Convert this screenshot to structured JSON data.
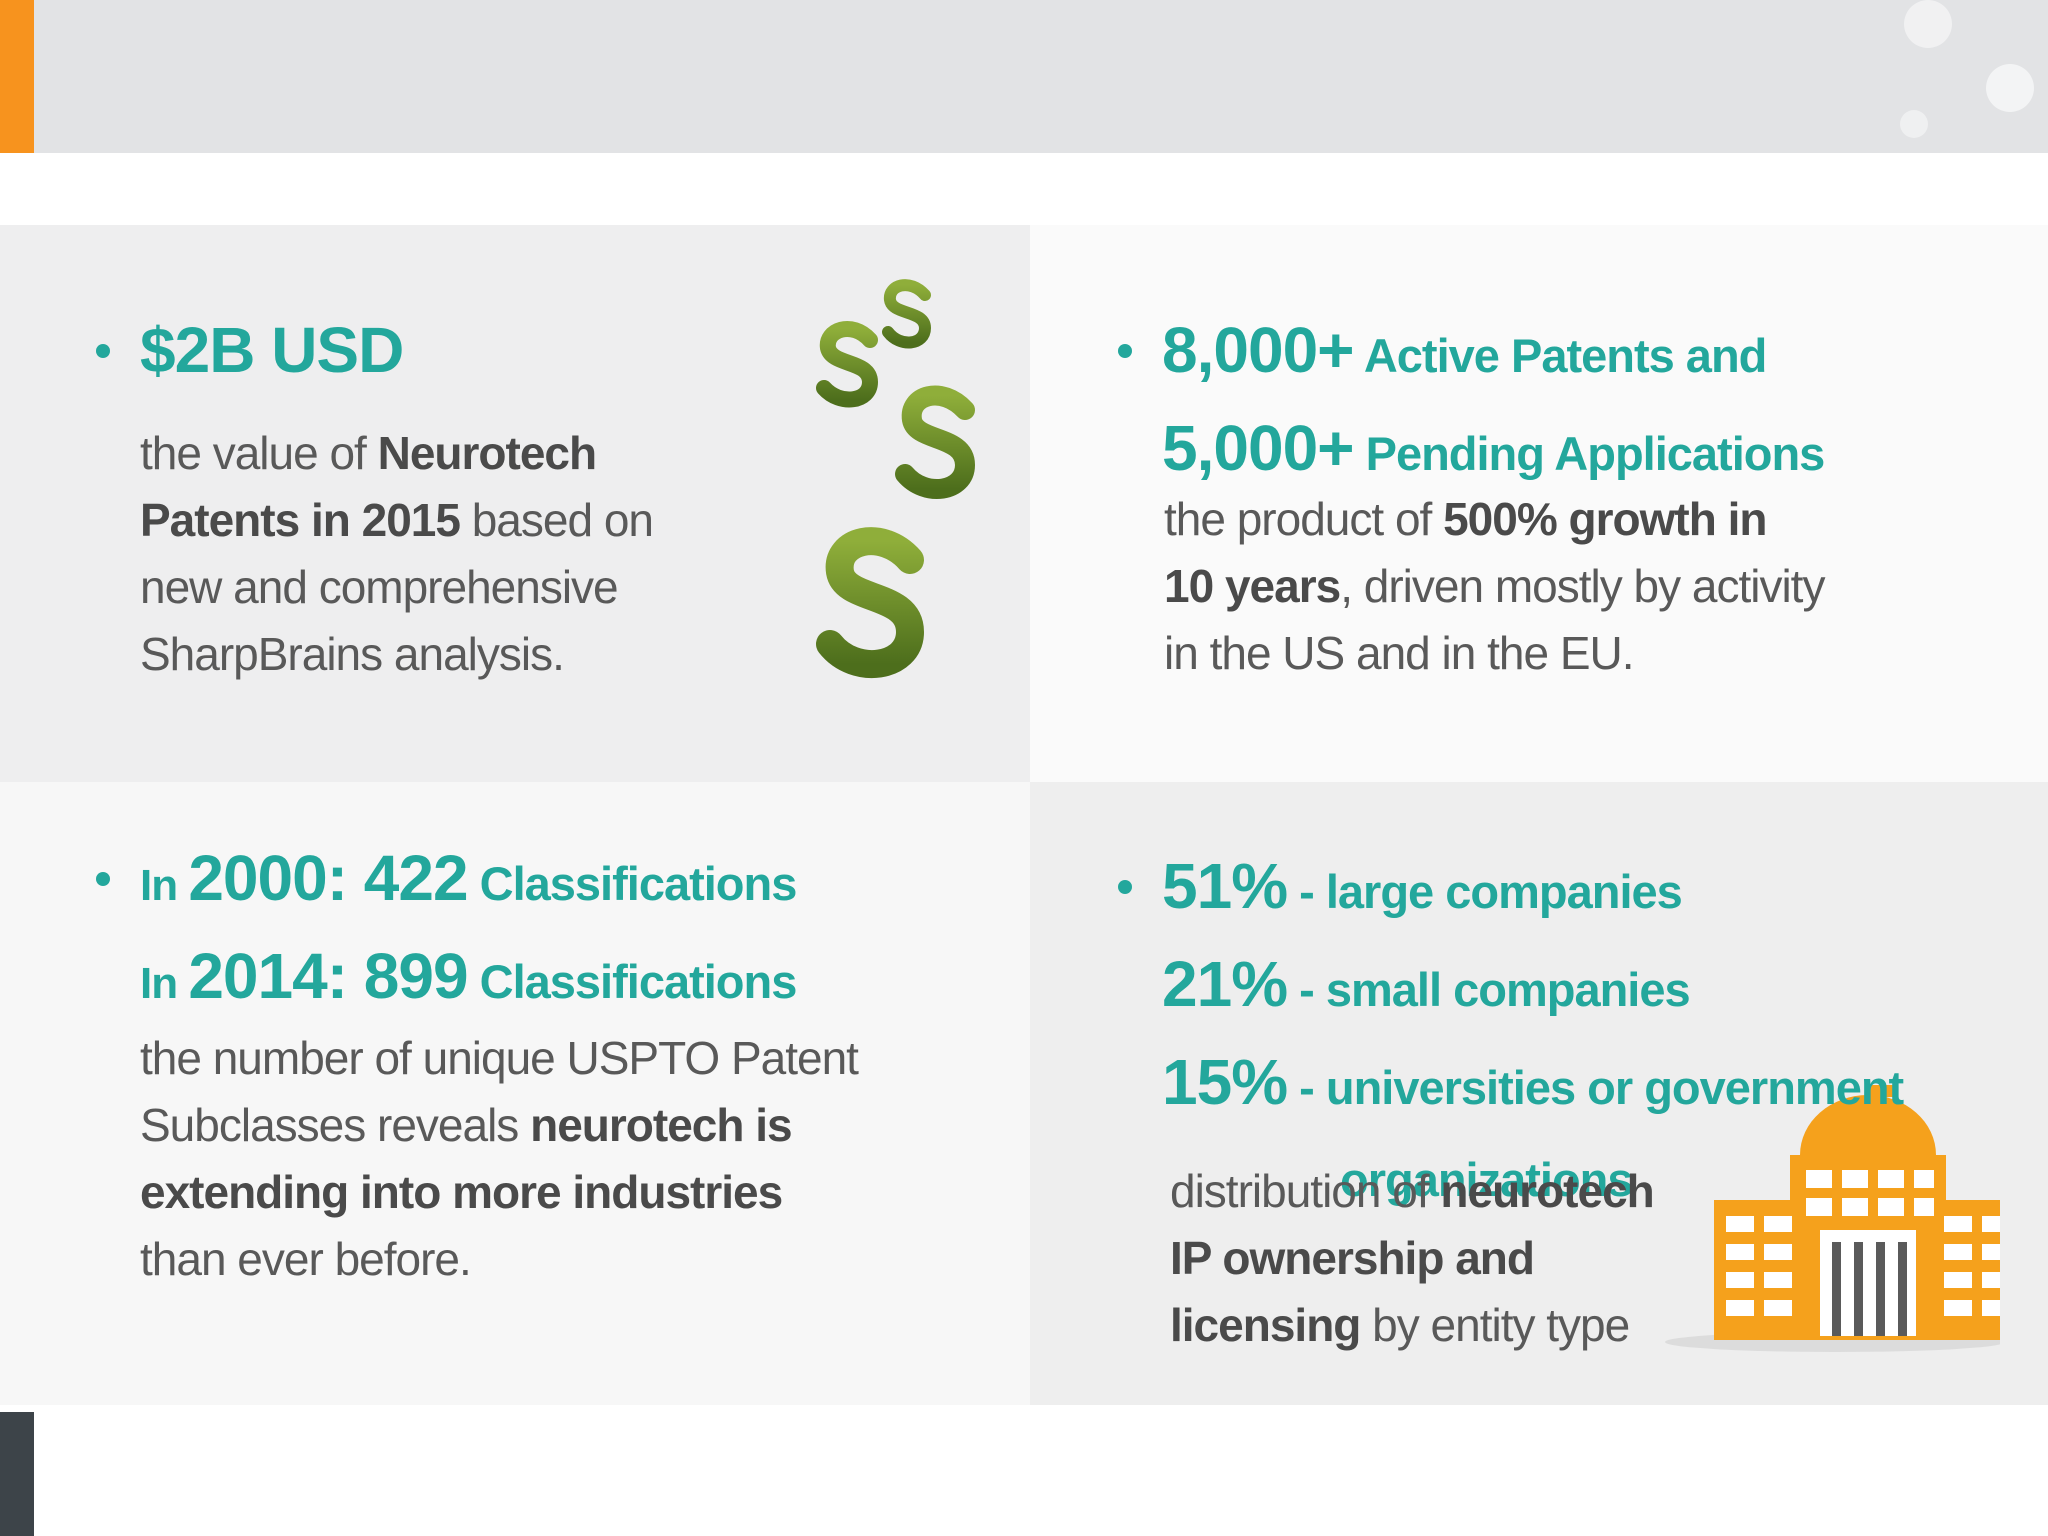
{
  "panels": [
    {
      "headline": [
        [
          {
            "text": "$2B USD",
            "size": "large"
          }
        ]
      ],
      "body": [
        [
          {
            "text": "the value of ",
            "weight": "normal"
          },
          {
            "text": "Neurotech",
            "weight": "bold"
          }
        ],
        [
          {
            "text": "Patents in 2015",
            "weight": "bold"
          },
          {
            "text": " based on",
            "weight": "normal"
          }
        ],
        [
          {
            "text": "new and comprehensive",
            "weight": "normal"
          }
        ],
        [
          {
            "text": "SharpBrains analysis.",
            "weight": "normal"
          }
        ]
      ]
    },
    {
      "headline": [
        [
          {
            "text": "8,000+",
            "size": "large"
          },
          {
            "text": " Active Patents and",
            "size": "medium"
          }
        ],
        [
          {
            "text": "5,000+",
            "size": "large"
          },
          {
            "text": " Pending Applications",
            "size": "medium"
          }
        ]
      ],
      "body": [
        [
          {
            "text": "the product of ",
            "weight": "normal"
          },
          {
            "text": "500% growth in",
            "weight": "bold"
          }
        ],
        [
          {
            "text": "10 years",
            "weight": "bold"
          },
          {
            "text": ", driven mostly by activity",
            "weight": "normal"
          }
        ],
        [
          {
            "text": "in the US and in the EU.",
            "weight": "normal"
          }
        ]
      ]
    },
    {
      "headline": [
        [
          {
            "text": "In ",
            "size": "small"
          },
          {
            "text": "2000: 422",
            "size": "large"
          },
          {
            "text": " Classifications",
            "size": "medium"
          }
        ],
        [
          {
            "text": "In ",
            "size": "small"
          },
          {
            "text": "2014: 899",
            "size": "large"
          },
          {
            "text": " Classifications",
            "size": "medium"
          }
        ]
      ],
      "body": [
        [
          {
            "text": "the number of unique USPTO Patent",
            "weight": "normal"
          }
        ],
        [
          {
            "text": "Subclasses reveals ",
            "weight": "normal"
          },
          {
            "text": "neurotech is",
            "weight": "bold"
          }
        ],
        [
          {
            "text": "extending into more industries",
            "weight": "bold"
          }
        ],
        [
          {
            "text": "than ever before.",
            "weight": "normal"
          }
        ]
      ]
    },
    {
      "headline": [
        [
          {
            "text": "51%",
            "size": "large"
          },
          {
            "text": " - large companies",
            "size": "medium"
          }
        ],
        [
          {
            "text": "21%",
            "size": "large"
          },
          {
            "text": " - small companies",
            "size": "medium"
          }
        ],
        [
          {
            "text": "15%",
            "size": "large"
          },
          {
            "text": " - universities or government",
            "size": "medium"
          }
        ],
        [
          {
            "text": "organizations",
            "size": "medium"
          }
        ]
      ],
      "body": [
        [
          {
            "text": "distribution of ",
            "weight": "normal"
          },
          {
            "text": "neurotech",
            "weight": "bold"
          }
        ],
        [
          {
            "text": "IP ownership and",
            "weight": "bold"
          }
        ],
        [
          {
            "text": "licensing",
            "weight": "bold"
          },
          {
            "text": " by entity type",
            "weight": "normal"
          }
        ]
      ]
    }
  ]
}
